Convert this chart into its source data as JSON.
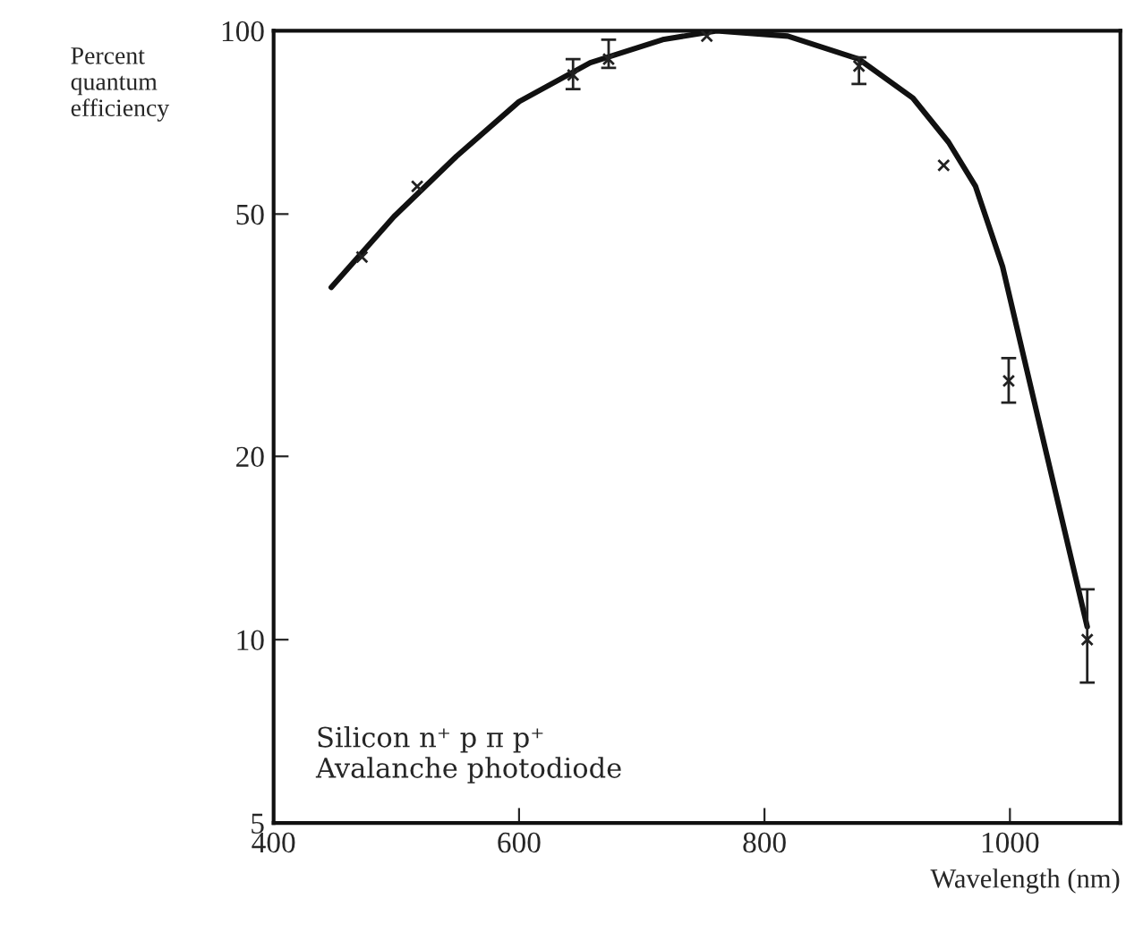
{
  "chart_data": {
    "type": "line",
    "xlabel": "Wavelength (nm)",
    "ylabel": "Percent\nquantum\nefficiency",
    "annotations": [
      "Silicon n⁺ p π p⁺\nAvalanche photodiode"
    ],
    "log": "y",
    "xlim": [
      400,
      1090
    ],
    "ylim": [
      5,
      100
    ],
    "xticks": [
      400,
      600,
      800,
      1000
    ],
    "yticks": [
      5,
      10,
      20,
      50,
      100
    ],
    "grid": false,
    "series": [
      {
        "color": "#111111",
        "line_style": "solid",
        "marker": "none",
        "x": [
          447,
          498,
          549,
          600,
          658,
          717,
          761,
          819,
          877,
          921,
          950,
          972,
          994,
          1023,
          1063
        ],
        "values": [
          37.9,
          49.5,
          62.2,
          76.5,
          88.6,
          96.7,
          100,
          98,
          89.8,
          77.5,
          65.6,
          55.5,
          41,
          23.1,
          10.5
        ]
      },
      {
        "type": "scatter",
        "color": "#222222",
        "marker": "cross",
        "x": [
          472,
          517,
          644,
          673,
          753,
          877,
          946,
          999,
          1063
        ],
        "values": [
          42.5,
          55.5,
          84.6,
          89.8,
          98,
          87.5,
          60.1,
          26.6,
          10
        ],
        "errors": [
          null,
          null,
          [
            80.2,
            89.8
          ],
          [
            86.9,
            96.7
          ],
          null,
          [
            81.8,
            90.4
          ],
          null,
          [
            24.5,
            29.0
          ],
          [
            8.5,
            12.1
          ]
        ]
      }
    ]
  }
}
